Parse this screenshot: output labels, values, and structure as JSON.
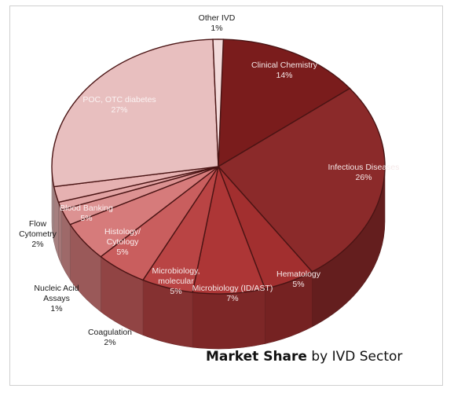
{
  "chart_data": {
    "type": "pie",
    "title_bold": "Market Share",
    "title_rest": " by IVD Sector",
    "series": [
      {
        "category": "Clinical Chemistry",
        "value": 14,
        "label": "14%",
        "color": "#7a1c1c"
      },
      {
        "category": "Infectious Diseases",
        "value": 26,
        "label": "26%",
        "color": "#8b2a2a"
      },
      {
        "category": "Hematology",
        "value": 5,
        "label": "5%",
        "color": "#a22f2f"
      },
      {
        "category": "Microbiology (ID/AST)",
        "value": 7,
        "label": "7%",
        "color": "#ad3636"
      },
      {
        "category": "Microbiology, molecular",
        "value": 5,
        "label": "5%",
        "color": "#b94444"
      },
      {
        "category": "Histology/ Cytology",
        "value": 5,
        "label": "5%",
        "color": "#c95e5e"
      },
      {
        "category": "Blood Banking",
        "value": 5,
        "label": "5%",
        "color": "#d67b7b"
      },
      {
        "category": "Flow Cytometry",
        "value": 2,
        "label": "2%",
        "color": "#dc9292"
      },
      {
        "category": "Nucleic Acid Assays",
        "value": 1,
        "label": "1%",
        "color": "#e2a4a4"
      },
      {
        "category": "Coagulation",
        "value": 2,
        "label": "2%",
        "color": "#e6b1b1"
      },
      {
        "category": "POC, OTC diabetes",
        "value": 27,
        "label": "27%",
        "color": "#e8bfbf"
      },
      {
        "category": "Other IVD",
        "value": 1,
        "label": "1%",
        "color": "#f2dada"
      }
    ]
  }
}
